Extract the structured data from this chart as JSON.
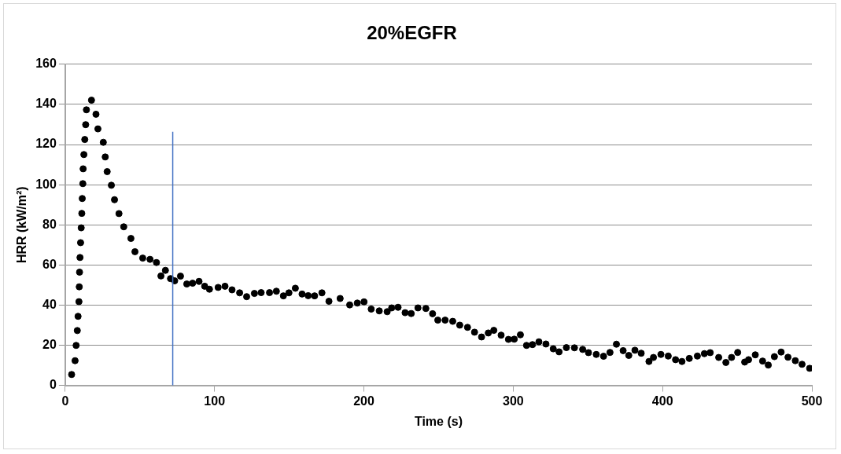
{
  "chart_data": {
    "type": "scatter",
    "title": "20%EGFR",
    "xlabel": "Time (s)",
    "ylabel": "HRR (kW/m²)",
    "xlim": [
      0,
      500
    ],
    "xticks": [
      0,
      100,
      200,
      300,
      400,
      500
    ],
    "ylim": [
      0,
      160
    ],
    "yticks": [
      0,
      20,
      40,
      60,
      80,
      100,
      120,
      140,
      160
    ],
    "grid": "y",
    "legend": false,
    "marker": "circle",
    "ref_lines": [
      {
        "axis": "x",
        "value": 72,
        "color": "#4472c4"
      }
    ],
    "series": [
      {
        "color": "#000000",
        "x": [
          4.3,
          6.6,
          7.3,
          8.1,
          8.6,
          9.2,
          9.4,
          9.6,
          9.9,
          10.3,
          10.7,
          11.1,
          11.4,
          11.8,
          12.0,
          12.5,
          13.1,
          13.7,
          14.2,
          17.6,
          20.6,
          21.9,
          25.5,
          26.8,
          28.1,
          30.9,
          33.0,
          36.0,
          39.2,
          44.0,
          46.7,
          51.9,
          56.8,
          61.1,
          64.1,
          67.1,
          70.5,
          73.3,
          77.2,
          81.4,
          85.3,
          89.6,
          93.4,
          96.6,
          102.4,
          107.0,
          111.7,
          116.8,
          121.5,
          126.7,
          131.2,
          136.8,
          141.4,
          146.1,
          149.8,
          154.1,
          158.6,
          162.7,
          167.0,
          171.9,
          176.6,
          184.1,
          190.5,
          195.6,
          200.1,
          204.9,
          210.3,
          215.6,
          218.6,
          222.9,
          227.6,
          231.7,
          236.2,
          241.5,
          246.0,
          249.5,
          254.4,
          259.5,
          264.2,
          269.4,
          274.1,
          278.8,
          283.3,
          287.0,
          291.9,
          296.8,
          300.7,
          304.8,
          308.9,
          312.9,
          317.2,
          321.9,
          326.8,
          330.7,
          335.6,
          341.0,
          346.5,
          350.4,
          355.6,
          360.5,
          364.8,
          369.1,
          373.6,
          377.4,
          381.5,
          385.7,
          390.9,
          393.9,
          398.9,
          403.8,
          408.7,
          413.0,
          417.9,
          423.3,
          428.0,
          431.9,
          437.6,
          442.4,
          446.2,
          450.3,
          455.0,
          457.6,
          462.1,
          467.0,
          470.8,
          474.9,
          479.4,
          484.0,
          488.9,
          493.4,
          498.5
        ],
        "values": [
          5.4,
          12.3,
          19.9,
          27.3,
          34.4,
          41.7,
          49.1,
          56.4,
          63.7,
          71.1,
          78.5,
          85.7,
          93.1,
          100.5,
          107.9,
          115.0,
          122.5,
          129.9,
          137.3,
          142.1,
          135.1,
          127.8,
          121.1,
          113.8,
          106.5,
          99.7,
          92.5,
          85.6,
          79.0,
          73.2,
          66.6,
          63.4,
          62.8,
          61.2,
          54.5,
          57.3,
          53.2,
          52.1,
          54.4,
          50.5,
          50.9,
          51.8,
          49.4,
          47.9,
          48.8,
          49.4,
          47.6,
          46.1,
          44.2,
          45.8,
          46.2,
          46.2,
          46.9,
          44.6,
          46.1,
          48.4,
          45.5,
          44.7,
          44.6,
          46.1,
          41.9,
          43.3,
          40.1,
          41.0,
          41.6,
          38.0,
          37.1,
          36.7,
          38.6,
          38.9,
          36.2,
          35.8,
          38.6,
          38.3,
          35.7,
          32.5,
          32.5,
          31.9,
          30.0,
          28.9,
          26.5,
          24.1,
          26.1,
          27.4,
          25.0,
          22.9,
          23.0,
          25.2,
          19.9,
          20.3,
          21.7,
          20.6,
          18.2,
          16.7,
          18.8,
          18.7,
          17.9,
          16.3,
          15.4,
          14.5,
          16.4,
          20.5,
          17.3,
          14.9,
          17.5,
          16.0,
          11.9,
          13.9,
          15.4,
          14.6,
          12.8,
          11.9,
          13.4,
          14.6,
          15.8,
          16.3,
          13.9,
          11.4,
          13.9,
          16.4,
          11.6,
          12.8,
          15.2,
          12.1,
          10.1,
          14.3,
          16.6,
          14.0,
          12.3,
          10.5,
          8.5
        ]
      }
    ]
  }
}
